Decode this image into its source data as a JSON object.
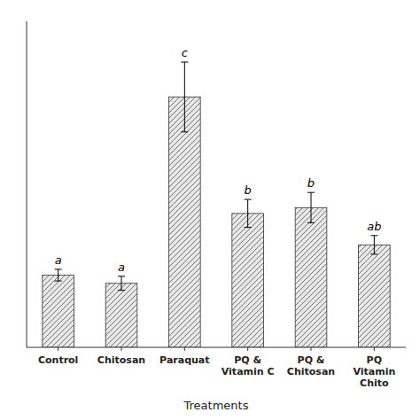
{
  "chart_data": {
    "type": "bar",
    "categories": [
      "Control",
      "Chitosan",
      "Paraquat",
      "PQ &\nVitamin C",
      "PQ &\nChitosan",
      "PQ\nVitamin\nChito"
    ],
    "values": [
      62,
      55,
      215,
      115,
      120,
      88
    ],
    "errors": [
      5,
      6,
      30,
      12,
      13,
      8
    ],
    "annotations": [
      "a",
      "a",
      "c",
      "b",
      "b",
      "ab"
    ],
    "xlabel": "Treatments",
    "color": "#e8e8e8",
    "ylim": [
      0,
      280
    ],
    "tick_labels": "x",
    "grid": false
  }
}
